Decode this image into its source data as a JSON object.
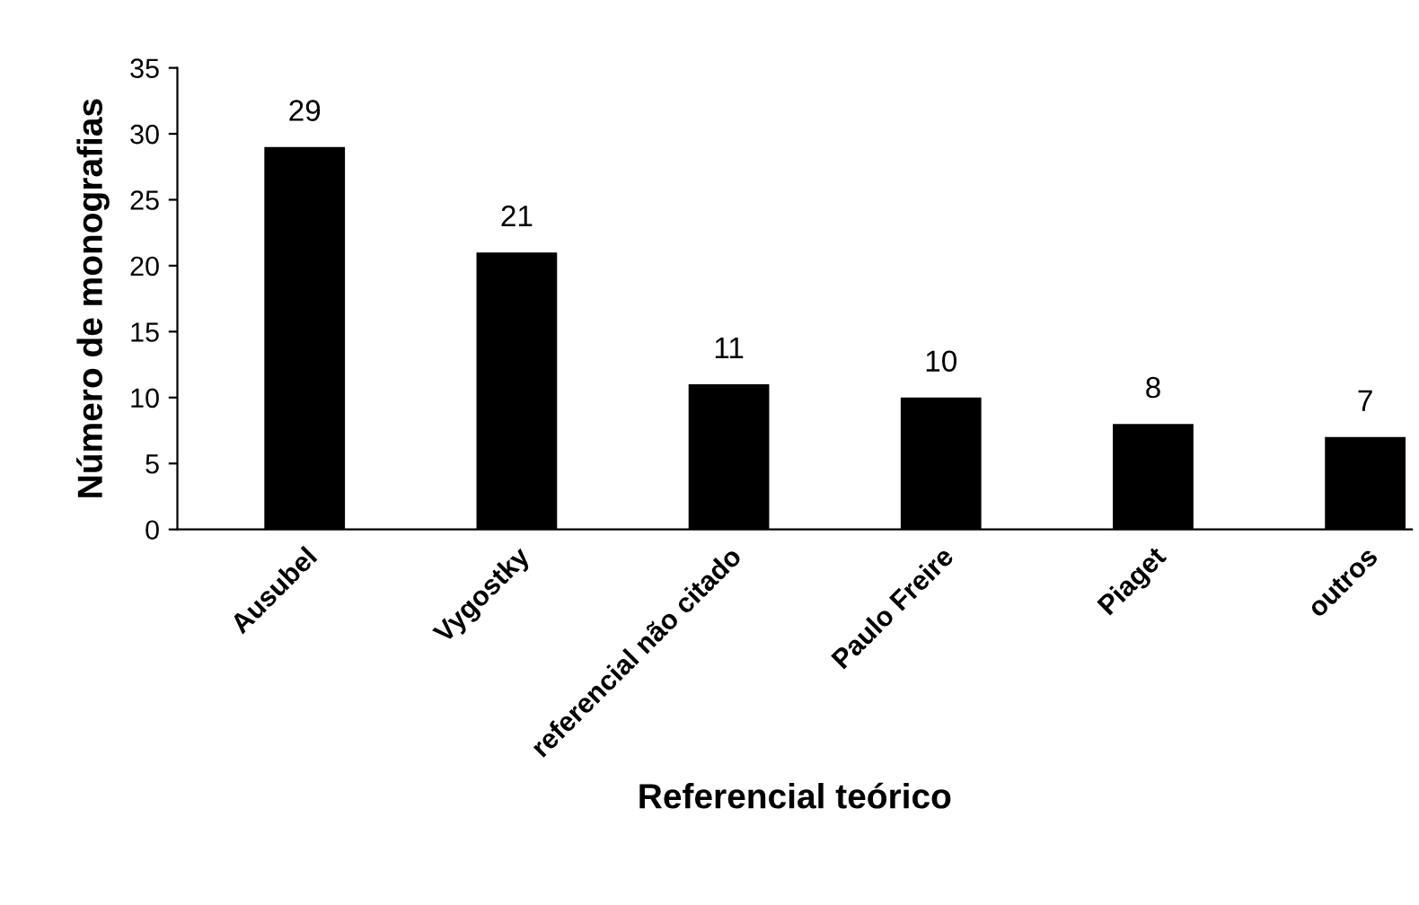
{
  "chart_data": {
    "type": "bar",
    "categories": [
      "Ausubel",
      "Vygostky",
      "referencial não citado",
      "Paulo Freire",
      "Piaget",
      "outros"
    ],
    "values": [
      29,
      21,
      11,
      10,
      8,
      7
    ],
    "color": "#000000",
    "xlabel": "Referencial teórico",
    "ylabel": "Número de monografias",
    "ylim": [
      0,
      35
    ],
    "yticks": [
      0,
      5,
      10,
      15,
      20,
      25,
      30,
      35
    ],
    "data_labels": true,
    "grid": false,
    "legend": false
  }
}
